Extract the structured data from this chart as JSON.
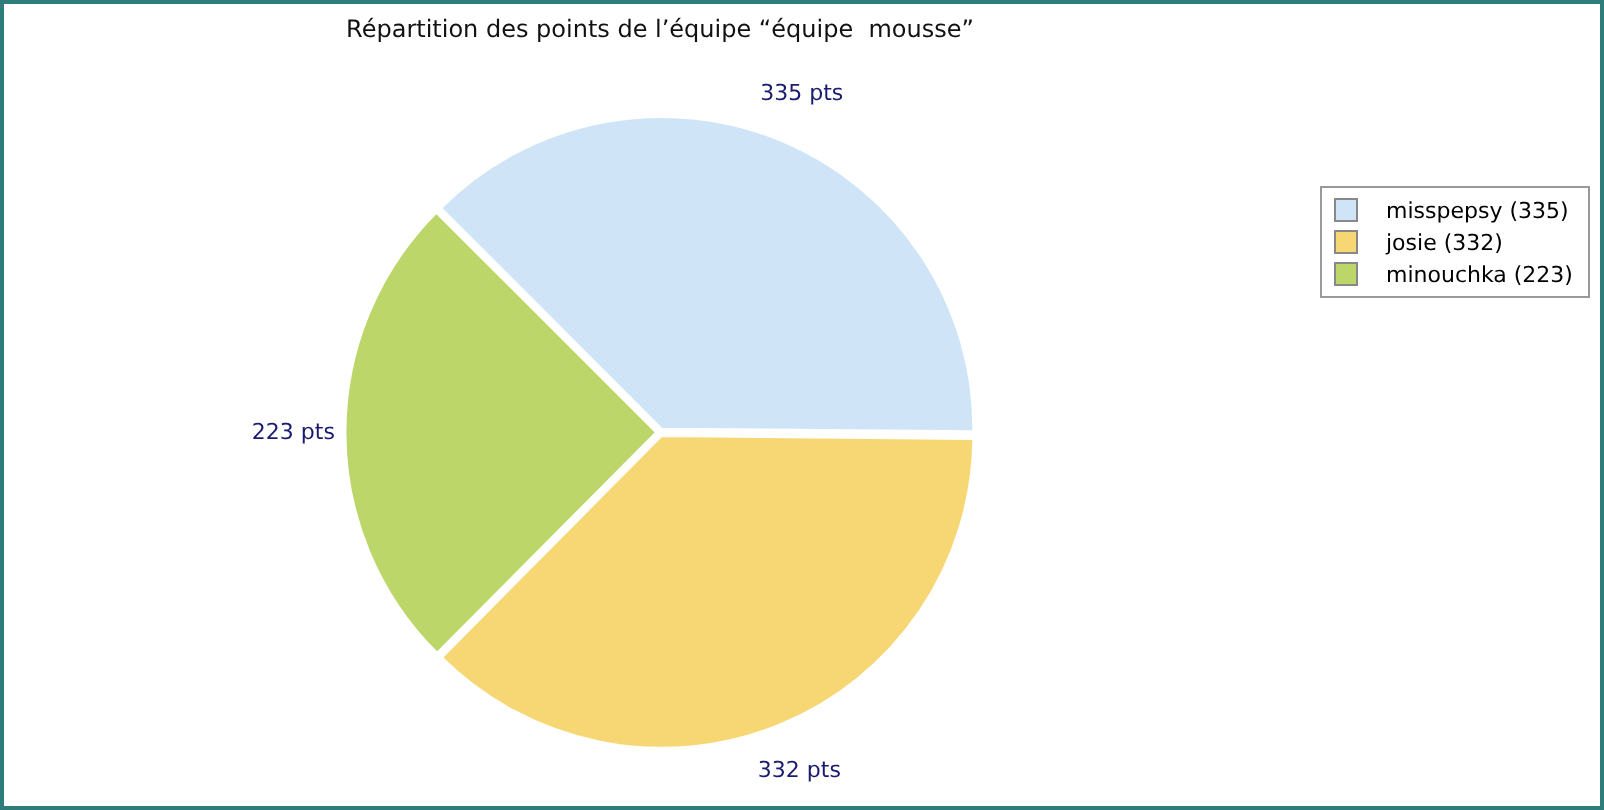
{
  "chart_data": {
    "type": "pie",
    "title": "Répartition des points de l’équipe “équipe  mousse”",
    "categories": [
      "misspepsy (335)",
      "josie (332)",
      "minouchka (223)"
    ],
    "values": [
      335,
      332,
      223
    ],
    "value_labels": [
      "335 pts",
      "332 pts",
      "223 pts"
    ],
    "colors": [
      "#cfe5f7",
      "#f7d774",
      "#bcd66a"
    ],
    "legend": "top right"
  }
}
